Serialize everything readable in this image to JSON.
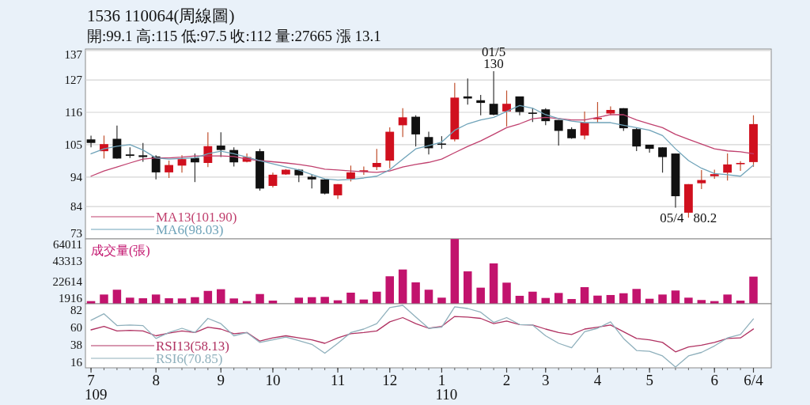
{
  "chart_data": [
    {
      "type": "candlestick",
      "title": "1536 110064(周線圖)",
      "subtitle": "開:99.1 高:115 低:97.5 收:112 量:27665 漲 13.1",
      "ohlc": [
        [
          106.8,
          108.1,
          104.1,
          105.6
        ],
        [
          102.8,
          108.1,
          100.3,
          105.2
        ],
        [
          107.0,
          111.5,
          100.3,
          100.3
        ],
        [
          101.7,
          104.1,
          100.5,
          101.2
        ],
        [
          101.4,
          105.6,
          99.2,
          100.8
        ],
        [
          101.0,
          101.4,
          93.2,
          95.6
        ],
        [
          95.6,
          99.6,
          93.7,
          98.1
        ],
        [
          97.9,
          101.4,
          95.5,
          100.1
        ],
        [
          100.5,
          102.0,
          92.3,
          99.0
        ],
        [
          98.8,
          109.2,
          97.4,
          104.5
        ],
        [
          104.7,
          109.2,
          100.8,
          103.2
        ],
        [
          103.2,
          104.1,
          97.6,
          99.0
        ],
        [
          99.2,
          102.0,
          99.0,
          100.8
        ],
        [
          102.8,
          103.6,
          89.4,
          90.1
        ],
        [
          91.0,
          95.5,
          90.5,
          94.8
        ],
        [
          94.9,
          96.7,
          94.8,
          96.5
        ],
        [
          96.5,
          96.7,
          92.3,
          94.6
        ],
        [
          94.1,
          94.8,
          90.1,
          93.2
        ],
        [
          93.2,
          93.4,
          88.1,
          88.4
        ],
        [
          87.8,
          91.6,
          86.6,
          91.6
        ],
        [
          93.4,
          97.9,
          92.5,
          95.6
        ],
        [
          96.2,
          97.6,
          94.8,
          96.3
        ],
        [
          97.4,
          103.6,
          96.4,
          98.8
        ],
        [
          99.6,
          110.9,
          97.0,
          109.4
        ],
        [
          111.6,
          117.4,
          107.6,
          114.3
        ],
        [
          114.5,
          115.0,
          104.4,
          108.5
        ],
        [
          107.6,
          109.4,
          101.7,
          103.8
        ],
        [
          105.4,
          107.9,
          103.6,
          105.0
        ],
        [
          106.8,
          126.0,
          106.1,
          121.0
        ],
        [
          121.4,
          127.5,
          118.6,
          120.7
        ],
        [
          120.1,
          121.9,
          115.0,
          119.2
        ],
        [
          118.9,
          130,
          115.0,
          115.2
        ],
        [
          116.3,
          123.4,
          111.2,
          118.9
        ],
        [
          121.4,
          121.4,
          115.0,
          116.1
        ],
        [
          115.9,
          117.4,
          112.7,
          115.7
        ],
        [
          117.0,
          117.4,
          111.6,
          113.0
        ],
        [
          113.4,
          113.4,
          104.7,
          109.7
        ],
        [
          110.3,
          110.9,
          107.0,
          107.2
        ],
        [
          108.1,
          116.3,
          106.8,
          112.5
        ],
        [
          113.7,
          119.5,
          112.5,
          114.1
        ],
        [
          115.6,
          118.0,
          115.0,
          116.8
        ],
        [
          117.4,
          117.4,
          109.7,
          110.6
        ],
        [
          110.3,
          110.6,
          102.8,
          104.4
        ],
        [
          105.0,
          105.0,
          102.3,
          103.6
        ],
        [
          104.1,
          104.1,
          95.5,
          100.8
        ],
        [
          102.0,
          102.0,
          83.6,
          87.5
        ],
        [
          81.9,
          91.6,
          80.2,
          91.6
        ],
        [
          91.9,
          96.4,
          89.9,
          93.0
        ],
        [
          94.3,
          96.5,
          93.4,
          95.0
        ],
        [
          95.5,
          102.0,
          92.8,
          98.3
        ],
        [
          98.6,
          99.4,
          96.1,
          98.8
        ],
        [
          99.1,
          115,
          97.5,
          112
        ]
      ],
      "series": [
        {
          "type": "line",
          "name": "MA13(101.90)",
          "color": "#c0406e",
          "values": [
            94.3,
            96.1,
            97.4,
            98.8,
            100.1,
            100.5,
            100.5,
            100.8,
            101.2,
            101.2,
            101.2,
            101.0,
            100.1,
            99.6,
            99.2,
            98.8,
            98.3,
            97.6,
            96.7,
            96.4,
            96.1,
            95.8,
            95.6,
            96.1,
            97.4,
            98.3,
            99.0,
            100.1,
            102.3,
            104.4,
            106.3,
            108.5,
            110.8,
            112.1,
            113.8,
            114.3,
            113.9,
            113.4,
            113.4,
            114.3,
            115.2,
            115.2,
            113.4,
            112.1,
            110.8,
            108.5,
            106.8,
            105.2,
            103.6,
            102.9,
            102.6,
            101.9
          ]
        },
        {
          "type": "line",
          "name": "MA6(98.03)",
          "color": "#6fa3b9",
          "values": [
            101.9,
            103.6,
            104.5,
            105.0,
            103.2,
            100.5,
            100.1,
            100.3,
            100.5,
            101.9,
            102.8,
            101.9,
            100.8,
            99.6,
            98.5,
            97.4,
            96.4,
            94.9,
            93.4,
            93.0,
            93.2,
            93.7,
            94.3,
            96.5,
            100.1,
            103.6,
            104.7,
            105.9,
            109.9,
            112.1,
            113.4,
            114.3,
            116.3,
            118.3,
            117.4,
            115.2,
            113.9,
            113.0,
            112.5,
            112.5,
            112.5,
            111.6,
            110.8,
            109.9,
            108.1,
            103.6,
            99.6,
            97.0,
            95.2,
            94.8,
            94.3,
            98.03
          ]
        }
      ],
      "annotations": [
        {
          "text": "01/5",
          "y": 130
        },
        {
          "text": "130",
          "y": 130
        },
        "05/4",
        "80.2"
      ],
      "ylim": [
        73,
        137.5
      ],
      "yticks": [
        73,
        84,
        94,
        105,
        116,
        127,
        137
      ],
      "grid": "y",
      "legend": "bottom left",
      "tick_labels": "y"
    },
    {
      "type": "bar",
      "title": "成交量(張)",
      "color": "#c2136d",
      "values": [
        2700,
        9400,
        14300,
        6200,
        5600,
        9400,
        5600,
        5400,
        6700,
        13100,
        14800,
        5400,
        2700,
        9900,
        3200,
        null,
        6200,
        6700,
        7000,
        3500,
        11300,
        4300,
        12300,
        28000,
        34900,
        21800,
        14300,
        6200,
        66000,
        33000,
        16400,
        41100,
        21500,
        8100,
        12300,
        5900,
        11000,
        4800,
        16900,
        8300,
        8900,
        10700,
        15100,
        5100,
        9400,
        13500,
        6200,
        3800,
        2700,
        9400,
        3200,
        27665
      ],
      "ylim": [
        0,
        66100
      ],
      "yticks": [
        1916,
        22614,
        43313,
        64011
      ],
      "tick_labels": "y"
    },
    {
      "type": "line",
      "categories": [
        "7",
        null,
        null,
        null,
        null,
        "8",
        null,
        null,
        null,
        null,
        "9",
        null,
        null,
        null,
        "10",
        null,
        null,
        null,
        null,
        "11",
        null,
        null,
        null,
        "12",
        null,
        null,
        null,
        "1",
        null,
        null,
        null,
        null,
        "2",
        null,
        null,
        "3",
        null,
        null,
        null,
        "4",
        null,
        null,
        null,
        "5",
        null,
        null,
        null,
        null,
        "6",
        null,
        null,
        "6/4"
      ],
      "series": [
        {
          "name": "RSI13(58.13)",
          "color": "#b03262",
          "values": [
            57.0,
            61.4,
            55.6,
            56.3,
            55.6,
            49.5,
            52.9,
            55.6,
            53.6,
            60.4,
            58.0,
            52.2,
            53.6,
            42.8,
            46.8,
            49.5,
            46.8,
            44.4,
            40.0,
            46.8,
            52.2,
            53.6,
            55.6,
            67.1,
            72.5,
            64.8,
            59.0,
            61.4,
            73.9,
            73.2,
            71.5,
            64.8,
            68.1,
            63.7,
            63.1,
            58.0,
            53.6,
            51.2,
            58.0,
            60.4,
            63.1,
            54.6,
            46.1,
            44.4,
            41.1,
            29.2,
            35.3,
            37.7,
            41.1,
            46.1,
            46.8,
            58.13
          ]
        },
        {
          "name": "RSI6(70.85)",
          "color": "#8fb0bc",
          "values": [
            69.1,
            77.3,
            62.4,
            63.1,
            62.4,
            46.1,
            53.6,
            59.0,
            53.6,
            71.5,
            64.8,
            49.5,
            53.6,
            41.1,
            44.4,
            47.8,
            43.4,
            38.7,
            27.5,
            40.0,
            53.6,
            58.0,
            64.8,
            85.1,
            88.0,
            73.2,
            59.0,
            60.4,
            86.1,
            84.0,
            79.3,
            66.4,
            72.5,
            63.7,
            63.1,
            49.5,
            40.0,
            34.3,
            54.6,
            59.0,
            67.1,
            46.1,
            30.9,
            29.9,
            24.1,
            10.0,
            24.1,
            28.5,
            36.7,
            46.8,
            51.2,
            70.85
          ]
        }
      ],
      "annotations": [
        "109",
        "110"
      ],
      "ylim": [
        9,
        90
      ],
      "yticks": [
        16,
        38,
        60,
        82
      ],
      "legend": "bottom left"
    }
  ]
}
